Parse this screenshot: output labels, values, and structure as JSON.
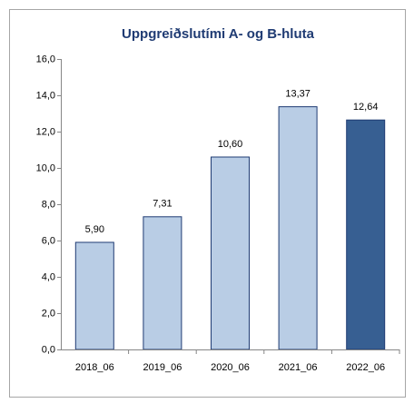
{
  "chart_data": {
    "type": "bar",
    "title": "Uppgreiðslutími A- og B-hluta",
    "categories": [
      "2018_06",
      "2019_06",
      "2020_06",
      "2021_06",
      "2022_06"
    ],
    "values": [
      5.9,
      7.31,
      10.6,
      13.37,
      12.64
    ],
    "value_labels": [
      "5,90",
      "7,31",
      "10,60",
      "13,37",
      "12,64"
    ],
    "colors": [
      "#b9cde5",
      "#b9cde5",
      "#b9cde5",
      "#b9cde5",
      "#375f92"
    ],
    "ylim": [
      0,
      16
    ],
    "yticks": [
      {
        "value": 0,
        "label": "0,0"
      },
      {
        "value": 2,
        "label": "2,0"
      },
      {
        "value": 4,
        "label": "4,0"
      },
      {
        "value": 6,
        "label": "6,0"
      },
      {
        "value": 8,
        "label": "8,0"
      },
      {
        "value": 10,
        "label": "10,0"
      },
      {
        "value": 12,
        "label": "12,0"
      },
      {
        "value": 14,
        "label": "14,0"
      },
      {
        "value": 16,
        "label": "16,0"
      }
    ],
    "grid": false
  }
}
